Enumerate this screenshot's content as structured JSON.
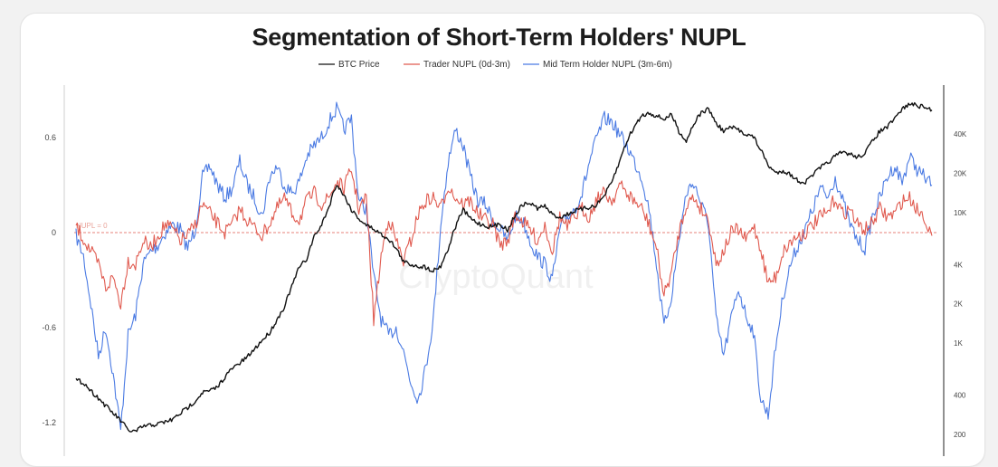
{
  "chart_data": {
    "type": "line",
    "title": "Segmentation of Short-Term Holders' NUPL",
    "watermark": "CryptoQuant",
    "reference_line": {
      "label": "NUPL = 0",
      "value": 0,
      "color": "#e05a4f"
    },
    "y_left": {
      "ticks": [
        "0.6",
        "0",
        "-0.6",
        "-1.2"
      ],
      "tick_values": [
        0.6,
        0,
        -0.6,
        -1.2
      ],
      "range": [
        -1.4,
        0.85
      ]
    },
    "y_right": {
      "scale": "log",
      "ticks": [
        "40K",
        "20K",
        "10K",
        "4K",
        "2K",
        "1K",
        "400",
        "200"
      ],
      "tick_values": [
        40000,
        20000,
        10000,
        4000,
        2000,
        1000,
        400,
        200
      ],
      "range": [
        140,
        90000
      ]
    },
    "grid": false,
    "legend_position": "top-center",
    "series": [
      {
        "name": "BTC Price",
        "axis": "right",
        "color": "#111111",
        "values": [
          520,
          500,
          430,
          380,
          330,
          290,
          255,
          215,
          210,
          230,
          235,
          240,
          250,
          260,
          290,
          320,
          360,
          420,
          430,
          460,
          550,
          640,
          700,
          780,
          900,
          1050,
          1200,
          1500,
          1900,
          2700,
          3800,
          4400,
          6500,
          8000,
          11000,
          16500,
          13500,
          10500,
          9000,
          8000,
          7500,
          6800,
          6300,
          5300,
          4200,
          4000,
          3900,
          3800,
          3600,
          3900,
          5200,
          7800,
          10500,
          9000,
          8300,
          7900,
          7800,
          8200,
          7300,
          9500,
          11500,
          11800,
          10800,
          11200,
          9600,
          9200,
          9700,
          10300,
          10600,
          11000,
          11500,
          13500,
          17000,
          24000,
          35000,
          45000,
          55000,
          58000,
          55000,
          52000,
          56000,
          42000,
          35000,
          48000,
          58000,
          62000,
          48000,
          42000,
          45000,
          43000,
          40000,
          38000,
          30000,
          23000,
          20000,
          21000,
          19500,
          17500,
          17000,
          19500,
          22000,
          24000,
          27000,
          29000,
          28000,
          26500,
          28500,
          35000,
          42000,
          45000,
          52000,
          62000,
          68000,
          66000,
          64000,
          61000
        ]
      },
      {
        "name": "Trader NUPL (0d-3m)",
        "axis": "left",
        "color": "#e05a4f",
        "values": [
          0.04,
          -0.04,
          -0.12,
          -0.2,
          -0.35,
          -0.28,
          -0.45,
          -0.18,
          -0.2,
          -0.05,
          -0.1,
          -0.02,
          0.05,
          0.02,
          -0.05,
          -0.02,
          0.05,
          0.18,
          0.12,
          0.06,
          0.0,
          0.05,
          0.15,
          0.08,
          0.03,
          -0.02,
          0.06,
          0.15,
          0.22,
          0.12,
          0.08,
          0.2,
          0.25,
          0.18,
          0.22,
          0.32,
          0.28,
          0.4,
          0.15,
          0.22,
          -0.55,
          -0.15,
          0.1,
          -0.05,
          -0.18,
          -0.05,
          0.12,
          0.2,
          0.22,
          0.15,
          0.3,
          0.22,
          0.18,
          0.2,
          0.12,
          0.08,
          0.05,
          -0.08,
          -0.05,
          0.12,
          0.07,
          0.02,
          -0.05,
          0.05,
          -0.12,
          0.1,
          0.03,
          0.1,
          0.15,
          0.1,
          0.22,
          0.25,
          0.2,
          0.3,
          0.25,
          0.2,
          0.15,
          0.05,
          -0.1,
          -0.4,
          -0.25,
          0.0,
          0.18,
          0.22,
          0.15,
          0.08,
          -0.2,
          -0.12,
          0.0,
          0.02,
          -0.05,
          0.05,
          -0.1,
          -0.32,
          -0.28,
          -0.12,
          -0.06,
          -0.02,
          0.0,
          0.05,
          0.1,
          0.12,
          0.22,
          0.12,
          0.15,
          0.05,
          0.02,
          0.06,
          0.15,
          0.1,
          0.12,
          0.2,
          0.22,
          0.15,
          0.1,
          -0.02
        ]
      },
      {
        "name": "Mid Term Holder NUPL (3m-6m)",
        "axis": "left",
        "color": "#4a7ae3",
        "values": [
          -0.02,
          -0.15,
          -0.45,
          -0.78,
          -0.6,
          -0.9,
          -1.25,
          -0.65,
          -0.52,
          -0.2,
          -0.12,
          -0.08,
          0.0,
          0.05,
          0.02,
          -0.1,
          0.02,
          0.35,
          0.42,
          0.3,
          0.22,
          0.28,
          0.45,
          0.3,
          0.22,
          0.1,
          0.35,
          0.42,
          0.3,
          0.25,
          0.32,
          0.48,
          0.55,
          0.6,
          0.7,
          0.78,
          0.65,
          0.72,
          0.2,
          0.15,
          -0.28,
          -0.55,
          -0.65,
          -0.6,
          -0.75,
          -0.95,
          -1.05,
          -0.85,
          -0.55,
          0.05,
          0.45,
          0.65,
          0.55,
          0.35,
          0.2,
          0.18,
          0.08,
          0.02,
          -0.05,
          0.1,
          0.08,
          -0.05,
          -0.15,
          -0.2,
          -0.3,
          0.02,
          0.1,
          0.15,
          0.25,
          0.45,
          0.6,
          0.72,
          0.7,
          0.62,
          0.55,
          0.45,
          0.35,
          0.15,
          -0.2,
          -0.6,
          -0.4,
          -0.05,
          0.25,
          0.32,
          0.18,
          0.05,
          -0.55,
          -0.78,
          -0.55,
          -0.35,
          -0.52,
          -0.62,
          -1.05,
          -1.15,
          -0.72,
          -0.4,
          -0.2,
          -0.08,
          0.02,
          0.15,
          0.28,
          0.22,
          0.35,
          0.2,
          0.05,
          -0.05,
          -0.1,
          0.1,
          0.22,
          0.35,
          0.42,
          0.32,
          0.48,
          0.4,
          0.35,
          0.3
        ]
      }
    ]
  }
}
